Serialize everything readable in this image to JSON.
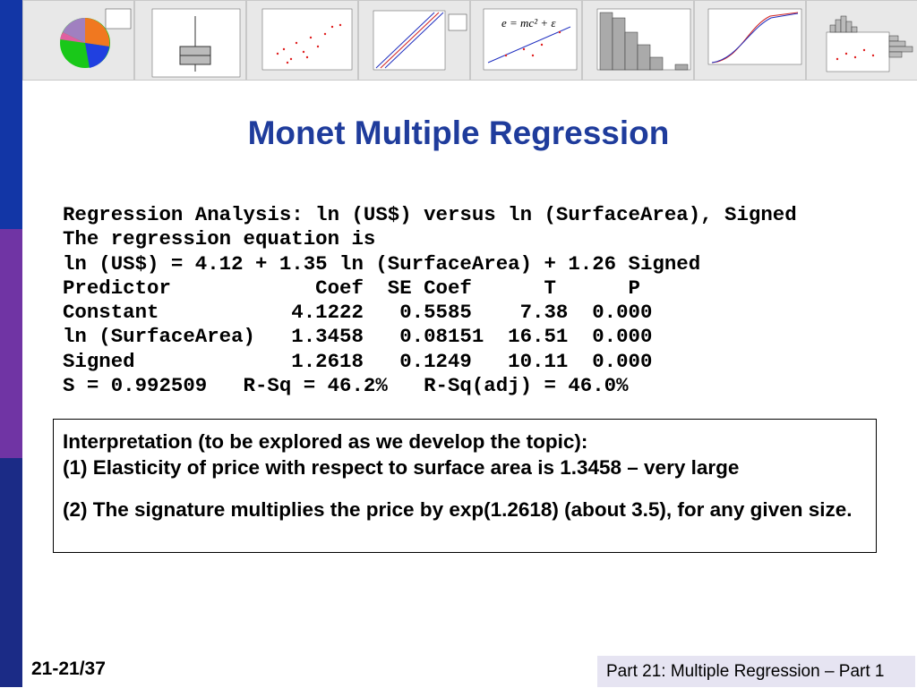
{
  "title": "Monet Multiple Regression",
  "banner": {
    "formula": "e = mc² + ε"
  },
  "output": {
    "lines": [
      "Regression Analysis: ln (US$) versus ln (SurfaceArea), Signed",
      "The regression equation is",
      "ln (US$) = 4.12 + 1.35 ln (SurfaceArea) + 1.26 Signed",
      "Predictor            Coef  SE Coef      T      P",
      "Constant           4.1222   0.5585    7.38  0.000",
      "ln (SurfaceArea)   1.3458   0.08151  16.51  0.000",
      "Signed             1.2618   0.1249   10.11  0.000",
      "S = 0.992509   R-Sq = 46.2%   R-Sq(adj) = 46.0%"
    ]
  },
  "interpretation": {
    "heading": "Interpretation (to be explored as we develop the topic):",
    "items": [
      "(1)  Elasticity of price with respect to surface area is 1.3458 – very large",
      "(2) The signature multiplies the price by exp(1.2618) (about 3.5), for any given size."
    ]
  },
  "footer": {
    "page": "21-21/37",
    "section": "Part 21: Multiple Regression – Part 1"
  }
}
